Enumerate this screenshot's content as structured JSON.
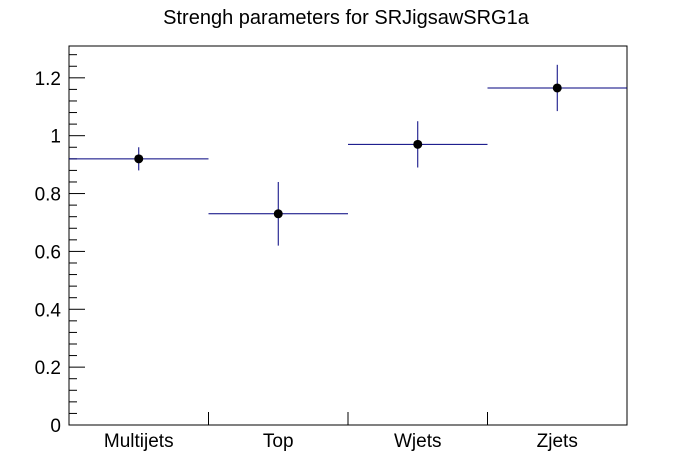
{
  "chart_data": {
    "type": "scatter",
    "title": "Strengh parameters for SRJigsawSRG1a",
    "categories": [
      "Multijets",
      "Top",
      "Wjets",
      "Zjets"
    ],
    "series": [
      {
        "values": [
          0.92,
          0.73,
          0.97,
          1.165
        ],
        "errors": [
          0.04,
          0.11,
          0.08,
          0.08
        ]
      }
    ],
    "ylim": [
      0,
      1.31
    ],
    "y_ticks": [
      "0",
      "0.2",
      "0.4",
      "0.6",
      "0.8",
      "1",
      "1.2"
    ],
    "grid": false,
    "colors": {
      "marker": "#000000",
      "bar_line": "#00007f",
      "frame": "#000000"
    }
  }
}
